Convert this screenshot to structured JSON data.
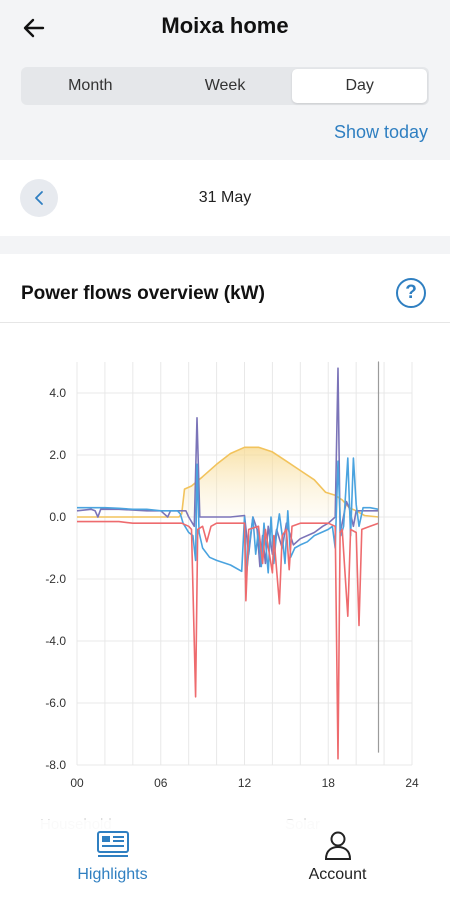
{
  "header": {
    "title": "Moixa home"
  },
  "segments": {
    "month": "Month",
    "week": "Week",
    "day": "Day",
    "active": "Day"
  },
  "show_today": "Show today",
  "date": {
    "label": "31 May"
  },
  "card": {
    "title": "Power flows overview (kW)"
  },
  "ghost_labels": {
    "left": "Household",
    "right": "Solar"
  },
  "nav": {
    "highlights": "Highlights",
    "account": "Account"
  },
  "colors": {
    "accent": "#2f7fc1",
    "solar": "#f2c35c",
    "battery": "#7b74b8",
    "grid": "#4aa3df",
    "household": "#ee6b6e"
  },
  "chart_data": {
    "type": "line",
    "title": "",
    "xlabel": "",
    "ylabel": "",
    "xlim": [
      0,
      24
    ],
    "ylim": [
      -8,
      5
    ],
    "x_ticks": [
      "00",
      "06",
      "12",
      "18",
      "24"
    ],
    "y_ticks": [
      "4.0",
      "2.0",
      "0.0",
      "-2.0",
      "-4.0",
      "-6.0",
      "-8.0"
    ],
    "grid": true,
    "series": [
      {
        "color": "#f2c35c",
        "fill": true,
        "points": [
          [
            0,
            0
          ],
          [
            7.3,
            0
          ],
          [
            7.5,
            0.1
          ],
          [
            7.7,
            0.9
          ],
          [
            8.2,
            1
          ],
          [
            9,
            1.3
          ],
          [
            10,
            1.7
          ],
          [
            11,
            2.05
          ],
          [
            12,
            2.25
          ],
          [
            13,
            2.25
          ],
          [
            14,
            2.1
          ],
          [
            15,
            1.8
          ],
          [
            16,
            1.5
          ],
          [
            17,
            1.2
          ],
          [
            17.8,
            0.8
          ],
          [
            18.5,
            0.7
          ],
          [
            19,
            0.55
          ],
          [
            19.5,
            0.3
          ],
          [
            20,
            0.2
          ],
          [
            20.6,
            0.05
          ],
          [
            21.6,
            0
          ]
        ]
      },
      {
        "color": "#7b74b8",
        "points": [
          [
            0,
            0.2
          ],
          [
            1,
            0.25
          ],
          [
            1.3,
            0.2
          ],
          [
            1.5,
            0
          ],
          [
            1.7,
            0.25
          ],
          [
            3,
            0.25
          ],
          [
            5,
            0.2
          ],
          [
            6,
            0.2
          ],
          [
            6.5,
            0
          ],
          [
            6.7,
            0.2
          ],
          [
            7.8,
            0.2
          ],
          [
            8,
            0
          ],
          [
            8.4,
            -0.3
          ],
          [
            8.6,
            3.2
          ],
          [
            8.8,
            0
          ],
          [
            9.5,
            0
          ],
          [
            10,
            0
          ],
          [
            11,
            0
          ],
          [
            12,
            0.05
          ],
          [
            12.3,
            -1.2
          ],
          [
            12.6,
            0
          ],
          [
            12.9,
            -0.4
          ],
          [
            13.1,
            -1.6
          ],
          [
            13.3,
            -0.6
          ],
          [
            13.5,
            -1.5
          ],
          [
            13.7,
            -0.3
          ],
          [
            14,
            -1.2
          ],
          [
            14.3,
            -0.4
          ],
          [
            14.7,
            -1
          ],
          [
            15,
            -0.2
          ],
          [
            15.5,
            -0.9
          ],
          [
            16,
            -0.7
          ],
          [
            17,
            -0.5
          ],
          [
            17.6,
            -0.3
          ],
          [
            18,
            -0.2
          ],
          [
            18.5,
            0
          ],
          [
            18.7,
            4.8
          ],
          [
            18.85,
            -0.5
          ],
          [
            19,
            -0.2
          ],
          [
            19.3,
            0.5
          ],
          [
            19.5,
            0.3
          ],
          [
            19.8,
            -0.3
          ],
          [
            20,
            0.2
          ],
          [
            21.6,
            0.2
          ]
        ]
      },
      {
        "color": "#4aa3df",
        "points": [
          [
            0,
            0.3
          ],
          [
            1,
            0.3
          ],
          [
            2,
            0.3
          ],
          [
            3,
            0.28
          ],
          [
            4,
            0.25
          ],
          [
            5,
            0.25
          ],
          [
            6,
            0.2
          ],
          [
            7.2,
            0.2
          ],
          [
            7.4,
            0.1
          ],
          [
            7.6,
            -0.2
          ],
          [
            8,
            -0.5
          ],
          [
            8.3,
            -0.6
          ],
          [
            8.5,
            -1.4
          ],
          [
            8.6,
            1.7
          ],
          [
            8.75,
            -0.5
          ],
          [
            9,
            -1
          ],
          [
            9.5,
            -1.3
          ],
          [
            10,
            -1.4
          ],
          [
            11,
            -1.55
          ],
          [
            11.8,
            -1.75
          ],
          [
            12,
            0
          ],
          [
            12.15,
            -1.8
          ],
          [
            12.4,
            -0.7
          ],
          [
            12.6,
            0
          ],
          [
            12.8,
            -1.2
          ],
          [
            13,
            -0.4
          ],
          [
            13.2,
            -1.6
          ],
          [
            13.4,
            -0.2
          ],
          [
            13.7,
            -1.8
          ],
          [
            13.9,
            0
          ],
          [
            14.1,
            -1.5
          ],
          [
            14.3,
            -0.5
          ],
          [
            14.5,
            0.1
          ],
          [
            14.7,
            -0.6
          ],
          [
            14.9,
            -1.5
          ],
          [
            15.1,
            0.2
          ],
          [
            15.3,
            -1.3
          ],
          [
            15.6,
            -1
          ],
          [
            16,
            -0.9
          ],
          [
            16.5,
            -0.8
          ],
          [
            17,
            -0.6
          ],
          [
            17.5,
            -0.5
          ],
          [
            18,
            -0.4
          ],
          [
            18.3,
            -0.3
          ],
          [
            18.5,
            -1
          ],
          [
            18.7,
            1.8
          ],
          [
            18.9,
            -0.6
          ],
          [
            19.1,
            -0.3
          ],
          [
            19.4,
            1.9
          ],
          [
            19.6,
            -0.6
          ],
          [
            19.8,
            1.9
          ],
          [
            20,
            0.4
          ],
          [
            20.2,
            -0.3
          ],
          [
            20.5,
            0.3
          ],
          [
            21,
            0.3
          ],
          [
            21.6,
            0.25
          ]
        ]
      },
      {
        "color": "#ee6b6e",
        "points": [
          [
            0,
            -0.15
          ],
          [
            2,
            -0.15
          ],
          [
            3,
            -0.15
          ],
          [
            4,
            -0.2
          ],
          [
            5,
            -0.2
          ],
          [
            6,
            -0.2
          ],
          [
            7.5,
            -0.2
          ],
          [
            8,
            -0.3
          ],
          [
            8.2,
            -0.4
          ],
          [
            8.5,
            -5.8
          ],
          [
            8.65,
            -0.4
          ],
          [
            9,
            -0.3
          ],
          [
            9.3,
            -0.8
          ],
          [
            9.6,
            -0.3
          ],
          [
            10,
            -0.2
          ],
          [
            11,
            -0.2
          ],
          [
            12,
            -0.2
          ],
          [
            12.1,
            -2.7
          ],
          [
            12.3,
            -0.4
          ],
          [
            13,
            -0.3
          ],
          [
            13.3,
            -1.5
          ],
          [
            13.5,
            -0.4
          ],
          [
            14,
            -1.8
          ],
          [
            14.1,
            -0.6
          ],
          [
            14.5,
            -2.8
          ],
          [
            14.7,
            -0.6
          ],
          [
            15,
            -0.4
          ],
          [
            15.2,
            -1.7
          ],
          [
            15.4,
            -0.3
          ],
          [
            16,
            -0.2
          ],
          [
            17,
            -0.2
          ],
          [
            18,
            -0.2
          ],
          [
            18.5,
            -0.3
          ],
          [
            18.7,
            -7.8
          ],
          [
            18.85,
            -0.5
          ],
          [
            19,
            -0.4
          ],
          [
            19.4,
            -3.2
          ],
          [
            19.6,
            -0.4
          ],
          [
            20,
            -0.5
          ],
          [
            20.2,
            -3.5
          ],
          [
            20.4,
            -0.4
          ],
          [
            21,
            -0.3
          ],
          [
            21.6,
            -0.2
          ]
        ]
      },
      {
        "color": "#9b9b9b",
        "points": [
          [
            21.6,
            0.5
          ],
          [
            21.6,
            5
          ],
          [
            21.6,
            -7.6
          ]
        ]
      }
    ]
  }
}
